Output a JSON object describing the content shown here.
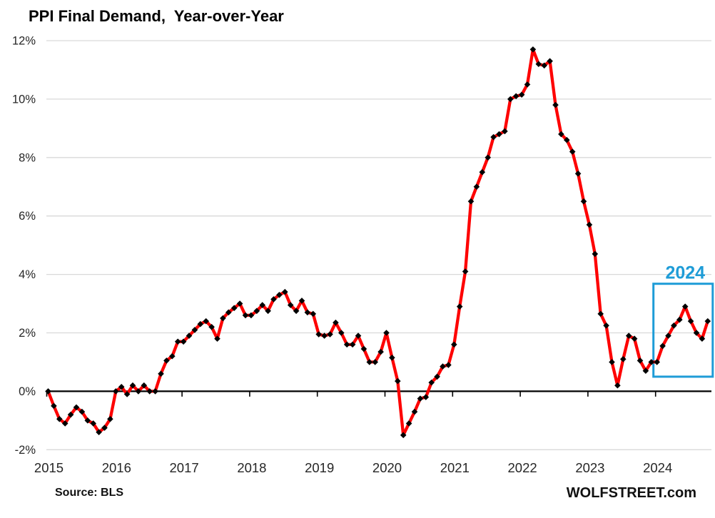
{
  "title": "PPI Final Demand,  Year-over-Year",
  "footer": {
    "source": "Source: BLS",
    "brand": "WOLFSTREET.com"
  },
  "colors": {
    "line": "#fe0000",
    "marker": "#000000",
    "grid": "#d9d9d9",
    "axis": "#000000",
    "tick_label": "#262626",
    "annotation": "#1e9cd7",
    "background": "#ffffff"
  },
  "chart_data": {
    "type": "line",
    "title": "PPI Final Demand, Year-over-Year",
    "unit": "percent, year-over-year",
    "frequency": "monthly",
    "x_start": "2015-01",
    "x_end": "2024-10",
    "ylim": [
      -2,
      12
    ],
    "grid": "horizontal",
    "yticks": [
      12,
      10,
      8,
      6,
      4,
      2,
      0,
      -2
    ],
    "ytick_labels": [
      "12%",
      "10%",
      "8%",
      "6%",
      "4%",
      "2%",
      "0%",
      "-2%"
    ],
    "xtick_labels": [
      "2015",
      "2016",
      "2017",
      "2018",
      "2019",
      "2020",
      "2021",
      "2022",
      "2023",
      "2024"
    ],
    "series": [
      {
        "name": "PPI Final Demand YoY",
        "marker": "diamond",
        "values_by_year": {
          "2015": [
            0.0,
            -0.5,
            -0.95,
            -1.1,
            -0.8,
            -0.55,
            -0.7,
            -1.0,
            -1.1,
            -1.4,
            -1.25,
            -0.95
          ],
          "2016": [
            0.0,
            0.15,
            -0.1,
            0.2,
            0.0,
            0.2,
            0.0,
            0.0,
            0.6,
            1.05,
            1.2,
            1.7
          ],
          "2017": [
            1.7,
            1.9,
            2.1,
            2.3,
            2.4,
            2.2,
            1.8,
            2.5,
            2.7,
            2.85,
            3.0,
            2.6
          ],
          "2018": [
            2.6,
            2.75,
            2.95,
            2.75,
            3.15,
            3.3,
            3.4,
            2.95,
            2.75,
            3.1,
            2.7,
            2.65
          ],
          "2019": [
            1.95,
            1.9,
            1.95,
            2.35,
            2.0,
            1.6,
            1.6,
            1.9,
            1.45,
            1.0,
            1.0,
            1.35
          ],
          "2020": [
            2.0,
            1.15,
            0.35,
            -1.5,
            -1.1,
            -0.7,
            -0.25,
            -0.2,
            0.3,
            0.5,
            0.85,
            0.9
          ],
          "2021": [
            1.6,
            2.9,
            4.1,
            6.5,
            7.0,
            7.5,
            8.0,
            8.7,
            8.8,
            8.9,
            10.0,
            10.1
          ],
          "2022": [
            10.15,
            10.5,
            11.7,
            11.2,
            11.15,
            11.3,
            9.8,
            8.8,
            8.6,
            8.2,
            7.45,
            6.5
          ],
          "2023": [
            5.7,
            4.7,
            2.65,
            2.25,
            1.0,
            0.2,
            1.1,
            1.9,
            1.8,
            1.05,
            0.7,
            1.0
          ],
          "2024": [
            1.0,
            1.55,
            1.9,
            2.25,
            2.45,
            2.9,
            2.4,
            2.0,
            1.8,
            2.4
          ]
        }
      }
    ],
    "annotation": {
      "label": "2024",
      "highlight_start": "2024-01",
      "highlight_end": "2024-10",
      "box_value_top": 3.68,
      "box_value_bottom": 0.5
    }
  }
}
